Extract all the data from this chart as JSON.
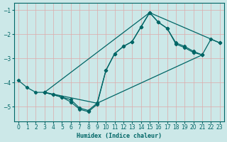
{
  "xlabel": "Humidex (Indice chaleur)",
  "background_color": "#cce8e8",
  "grid_color": "#ddaaaa",
  "line_color": "#006666",
  "xlim": [
    -0.5,
    23.5
  ],
  "ylim": [
    -5.6,
    -0.7
  ],
  "xticks": [
    0,
    1,
    2,
    3,
    4,
    5,
    6,
    7,
    8,
    9,
    10,
    11,
    12,
    13,
    14,
    15,
    16,
    17,
    18,
    19,
    20,
    21,
    22,
    23
  ],
  "yticks": [
    -5,
    -4,
    -3,
    -2,
    -1
  ],
  "curve1": {
    "x": [
      0,
      1,
      2,
      3,
      4,
      5,
      6,
      7,
      8,
      9,
      10,
      11,
      12,
      13,
      14,
      15,
      16,
      17,
      18,
      19,
      20,
      21
    ],
    "y": [
      -3.9,
      -4.2,
      -4.4,
      -4.4,
      -4.5,
      -4.6,
      -4.8,
      -5.1,
      -5.2,
      -4.9,
      -3.5,
      -2.8,
      -2.5,
      -2.3,
      -1.7,
      -1.1,
      -1.5,
      -1.75,
      -2.35,
      -2.5,
      -2.7,
      -2.85
    ]
  },
  "curve2": {
    "x": [
      3,
      4,
      5,
      6,
      7,
      8,
      9,
      10,
      11,
      12,
      13,
      14,
      15,
      16,
      17,
      18,
      19,
      20,
      21,
      22,
      23
    ],
    "y": [
      -4.4,
      -4.5,
      -4.6,
      -4.7,
      -5.05,
      -5.15,
      -4.85,
      -3.5,
      -2.8,
      -2.5,
      -2.3,
      -1.7,
      -1.1,
      -1.5,
      -1.75,
      -2.4,
      -2.55,
      -2.75,
      -2.85,
      -2.2,
      -2.35
    ]
  },
  "curve3": {
    "x": [
      3,
      15,
      23
    ],
    "y": [
      -4.4,
      -1.1,
      -2.35
    ]
  },
  "curve4": {
    "x": [
      3,
      9,
      21
    ],
    "y": [
      -4.4,
      -4.85,
      -2.85
    ]
  }
}
